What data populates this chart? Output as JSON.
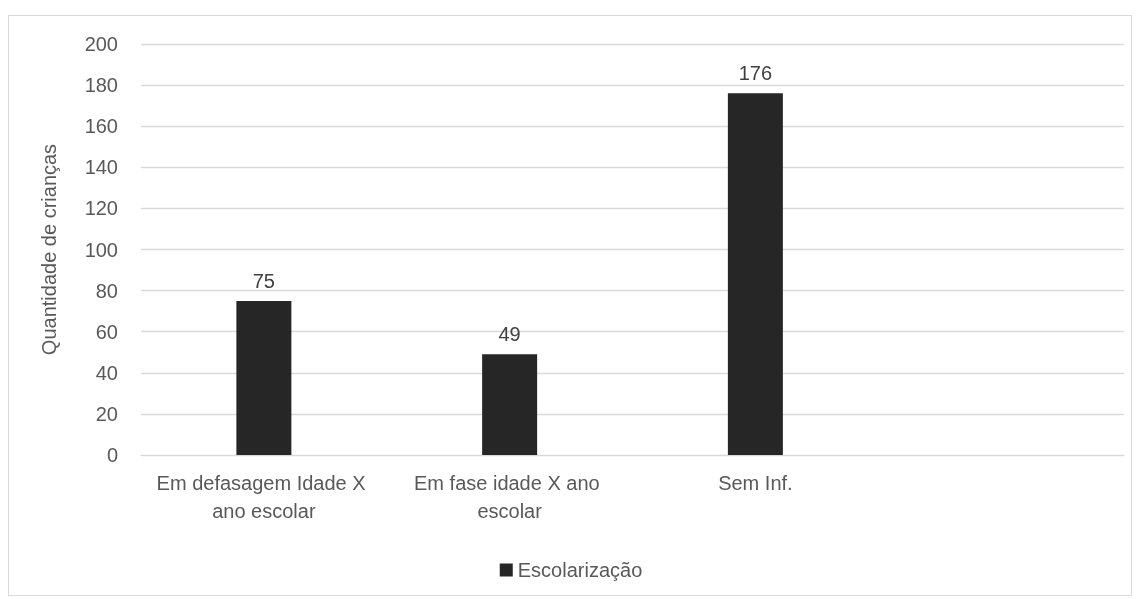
{
  "chart_data": {
    "type": "bar",
    "categories": [
      "Em defasagem Idade X ano escolar",
      "Em fase idade X ano escolar",
      "Sem Inf.",
      null
    ],
    "series": [
      {
        "name": "Escolarização",
        "color": "#262626",
        "values": [
          75,
          49,
          176,
          null
        ]
      }
    ],
    "ylabel": "Quantidade de crianças",
    "ylim": [
      0,
      200
    ],
    "yticks": [
      0,
      20,
      40,
      60,
      80,
      100,
      120,
      140,
      160,
      180,
      200
    ],
    "grid": "y",
    "legend": "bottom",
    "data_labels": true
  }
}
